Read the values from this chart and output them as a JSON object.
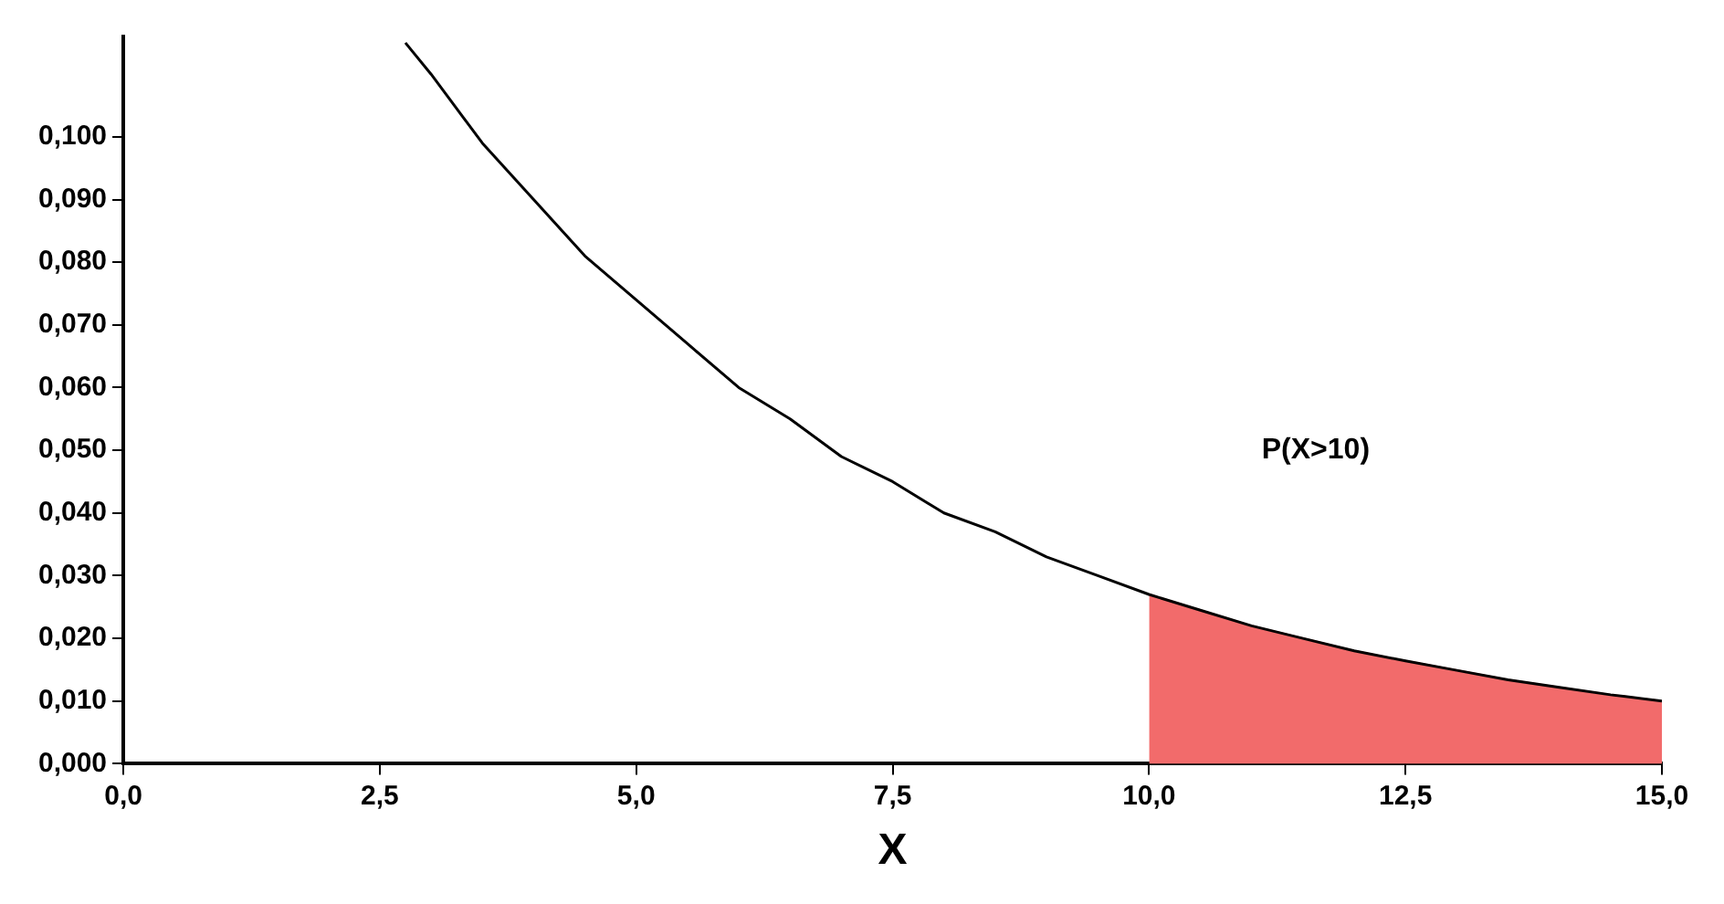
{
  "chart_data": {
    "type": "line",
    "xlabel": "X",
    "annotations": [
      "P(X>10)"
    ],
    "xlim": [
      0,
      15
    ],
    "xticks": [
      {
        "value": 0,
        "label": "0,0"
      },
      {
        "value": 2.5,
        "label": "2,5"
      },
      {
        "value": 5,
        "label": "5,0"
      },
      {
        "value": 7.5,
        "label": "7,5"
      },
      {
        "value": 10,
        "label": "10,0"
      },
      {
        "value": 12.5,
        "label": "12,5"
      },
      {
        "value": 15,
        "label": "15,0"
      }
    ],
    "ylim": [
      0,
      0.116
    ],
    "yticks": [
      {
        "value": 0,
        "label": "0,000"
      },
      {
        "value": 0.01,
        "label": "0,010"
      },
      {
        "value": 0.02,
        "label": "0,020"
      },
      {
        "value": 0.03,
        "label": "0,030"
      },
      {
        "value": 0.04,
        "label": "0,040"
      },
      {
        "value": 0.05,
        "label": "0,050"
      },
      {
        "value": 0.06,
        "label": "0,060"
      },
      {
        "value": 0.07,
        "label": "0,070"
      },
      {
        "value": 0.08,
        "label": "0,080"
      },
      {
        "value": 0.09,
        "label": "0,090"
      },
      {
        "value": 0.1,
        "label": "0,100"
      }
    ],
    "grid": false,
    "legend": false,
    "marker": "none",
    "line_style": "solid",
    "series": [
      {
        "type": "line",
        "color": "#000000",
        "x": [
          2.75,
          3,
          3.5,
          4,
          4.5,
          5,
          5.5,
          6,
          6.5,
          7,
          7.5,
          8,
          8.5,
          9,
          9.5,
          10,
          10.5,
          11,
          11.5,
          12,
          12.5,
          13,
          13.5,
          14,
          14.5,
          15
        ],
        "values": [
          0.115,
          0.11,
          0.099,
          0.09,
          0.081,
          0.074,
          0.067,
          0.06,
          0.055,
          0.049,
          0.045,
          0.04,
          0.037,
          0.033,
          0.03,
          0.027,
          0.0245,
          0.022,
          0.02,
          0.018,
          0.0164,
          0.0149,
          0.0134,
          0.0122,
          0.011,
          0.01
        ]
      },
      {
        "type": "area",
        "color": "#f26b6b",
        "x": [
          10,
          10.5,
          11,
          11.5,
          12,
          12.5,
          13,
          13.5,
          14,
          14.5,
          15
        ],
        "values": [
          0.027,
          0.0245,
          0.022,
          0.02,
          0.018,
          0.0164,
          0.0149,
          0.0134,
          0.0122,
          0.011,
          0.01
        ]
      }
    ]
  }
}
